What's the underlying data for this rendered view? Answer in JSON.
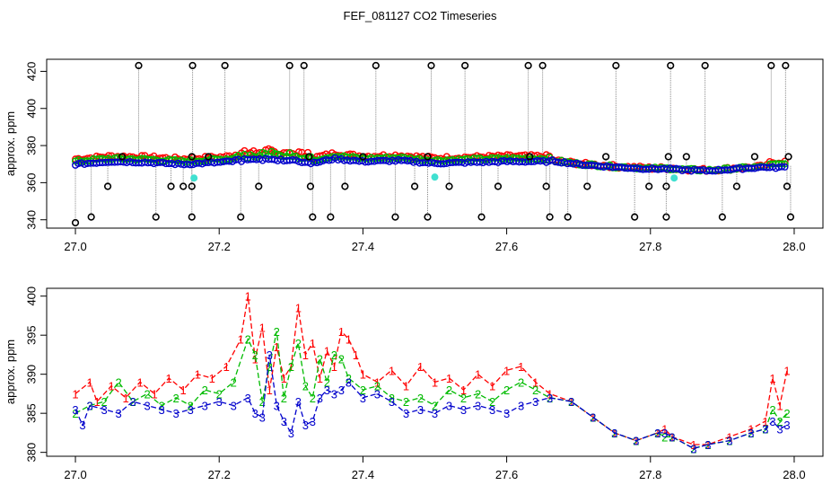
{
  "title": "FEF_081127  CO2 Timeseries",
  "colors": {
    "series1": "#ff0000",
    "series2": "#00bb00",
    "series3": "#0000cc",
    "outlier": "#000000",
    "flag": "#40e0d0",
    "connector": "#888888"
  },
  "chart_data": [
    {
      "type": "scatter",
      "ylabel": "approx. ppm",
      "xlim": [
        26.96,
        28.04
      ],
      "ylim": [
        335.5,
        426.5
      ],
      "x_ticks": [
        27.0,
        27.2,
        27.4,
        27.6,
        27.8,
        28.0
      ],
      "x_tick_labels": [
        "27.0",
        "27.2",
        "27.4",
        "27.6",
        "27.8",
        "28.0"
      ],
      "y_ticks": [
        340,
        360,
        380,
        400,
        420
      ],
      "y_tick_labels": [
        "340",
        "360",
        "380",
        "400",
        "420"
      ],
      "marker": "open circle",
      "baseline": [
        [
          27.0,
          370.5
        ],
        [
          27.05,
          372.0
        ],
        [
          27.1,
          371.5
        ],
        [
          27.15,
          370.5
        ],
        [
          27.2,
          371.5
        ],
        [
          27.25,
          373.0
        ],
        [
          27.3,
          372.5
        ],
        [
          27.33,
          371.0
        ],
        [
          27.36,
          373.5
        ],
        [
          27.4,
          372.0
        ],
        [
          27.45,
          372.5
        ],
        [
          27.5,
          371.0
        ],
        [
          27.55,
          371.5
        ],
        [
          27.6,
          372.0
        ],
        [
          27.65,
          372.0
        ],
        [
          27.66,
          372.0
        ],
        [
          27.7,
          370.0
        ],
        [
          27.75,
          368.5
        ],
        [
          27.8,
          367.5
        ],
        [
          27.83,
          367.5
        ],
        [
          27.84,
          367.0
        ],
        [
          27.88,
          366.5
        ],
        [
          27.92,
          367.5
        ],
        [
          27.96,
          368.5
        ],
        [
          27.99,
          369.0
        ]
      ],
      "outliers": [
        [
          27.0,
          338.0
        ],
        [
          27.022,
          341.5
        ],
        [
          27.045,
          358.0
        ],
        [
          27.065,
          374.0
        ],
        [
          27.088,
          430.0
        ],
        [
          27.112,
          341.5
        ],
        [
          27.133,
          358.0
        ],
        [
          27.15,
          358.0
        ],
        [
          27.162,
          341.5
        ],
        [
          27.162,
          358.0
        ],
        [
          27.162,
          374.0
        ],
        [
          27.163,
          430.0
        ],
        [
          27.185,
          374.0
        ],
        [
          27.208,
          430.0
        ],
        [
          27.23,
          341.5
        ],
        [
          27.255,
          358.0
        ],
        [
          27.298,
          430.0
        ],
        [
          27.318,
          430.0
        ],
        [
          27.325,
          374.0
        ],
        [
          27.327,
          358.0
        ],
        [
          27.33,
          341.5
        ],
        [
          27.355,
          341.5
        ],
        [
          27.375,
          358.0
        ],
        [
          27.4,
          374.0
        ],
        [
          27.418,
          430.0
        ],
        [
          27.445,
          341.5
        ],
        [
          27.472,
          358.0
        ],
        [
          27.49,
          341.5
        ],
        [
          27.49,
          374.0
        ],
        [
          27.495,
          430.0
        ],
        [
          27.52,
          358.0
        ],
        [
          27.542,
          430.0
        ],
        [
          27.565,
          341.5
        ],
        [
          27.588,
          358.0
        ],
        [
          27.63,
          430.0
        ],
        [
          27.632,
          374.0
        ],
        [
          27.65,
          430.0
        ],
        [
          27.655,
          358.0
        ],
        [
          27.66,
          341.5
        ],
        [
          27.685,
          341.5
        ],
        [
          27.712,
          358.0
        ],
        [
          27.738,
          374.0
        ],
        [
          27.752,
          430.0
        ],
        [
          27.778,
          341.5
        ],
        [
          27.798,
          358.0
        ],
        [
          27.822,
          358.0
        ],
        [
          27.822,
          341.5
        ],
        [
          27.825,
          374.0
        ],
        [
          27.828,
          430.0
        ],
        [
          27.85,
          374.0
        ],
        [
          27.876,
          430.0
        ],
        [
          27.9,
          341.5
        ],
        [
          27.92,
          358.0
        ],
        [
          27.945,
          374.0
        ],
        [
          27.968,
          430.0
        ],
        [
          27.988,
          430.0
        ],
        [
          27.99,
          358.0
        ],
        [
          27.992,
          374.0
        ],
        [
          27.995,
          341.5
        ]
      ],
      "flags": [
        [
          27.165,
          362.5
        ],
        [
          27.5,
          363.0
        ],
        [
          27.833,
          362.5
        ]
      ]
    },
    {
      "type": "line",
      "ylabel": "approx. ppm",
      "xlim": [
        26.96,
        28.04
      ],
      "ylim": [
        379.5,
        401.0
      ],
      "x_ticks": [
        27.0,
        27.2,
        27.4,
        27.6,
        27.8,
        28.0
      ],
      "x_tick_labels": [
        "27.0",
        "27.2",
        "27.4",
        "27.6",
        "27.8",
        "28.0"
      ],
      "y_ticks": [
        380,
        385,
        390,
        395,
        400
      ],
      "y_tick_labels": [
        "380",
        "385",
        "390",
        "395",
        "400"
      ],
      "marker": "series number",
      "series": [
        {
          "name": "1",
          "values": [
            [
              27.0,
              387.5
            ],
            [
              27.02,
              389.0
            ],
            [
              27.03,
              386.5
            ],
            [
              27.05,
              388.5
            ],
            [
              27.07,
              387.0
            ],
            [
              27.09,
              389.0
            ],
            [
              27.11,
              387.5
            ],
            [
              27.13,
              389.5
            ],
            [
              27.15,
              388.0
            ],
            [
              27.17,
              390.0
            ],
            [
              27.19,
              389.5
            ],
            [
              27.21,
              391.0
            ],
            [
              27.23,
              394.5
            ],
            [
              27.24,
              400.0
            ],
            [
              27.25,
              392.0
            ],
            [
              27.26,
              396.0
            ],
            [
              27.27,
              388.0
            ],
            [
              27.28,
              393.5
            ],
            [
              27.29,
              389.5
            ],
            [
              27.3,
              391.0
            ],
            [
              27.31,
              398.5
            ],
            [
              27.32,
              392.5
            ],
            [
              27.33,
              394.0
            ],
            [
              27.34,
              389.5
            ],
            [
              27.35,
              393.0
            ],
            [
              27.36,
              391.0
            ],
            [
              27.37,
              395.5
            ],
            [
              27.38,
              394.5
            ],
            [
              27.39,
              392.5
            ],
            [
              27.4,
              390.0
            ],
            [
              27.42,
              389.0
            ],
            [
              27.44,
              390.5
            ],
            [
              27.46,
              388.5
            ],
            [
              27.48,
              391.0
            ],
            [
              27.5,
              389.0
            ],
            [
              27.52,
              389.5
            ],
            [
              27.54,
              388.0
            ],
            [
              27.56,
              390.0
            ],
            [
              27.58,
              388.5
            ],
            [
              27.6,
              390.5
            ],
            [
              27.62,
              391.0
            ],
            [
              27.64,
              389.0
            ],
            [
              27.66,
              387.5
            ],
            [
              27.69,
              386.5
            ],
            [
              27.72,
              384.5
            ],
            [
              27.75,
              382.5
            ],
            [
              27.78,
              381.5
            ],
            [
              27.81,
              382.5
            ],
            [
              27.82,
              383.0
            ],
            [
              27.83,
              382.0
            ],
            [
              27.86,
              381.0
            ],
            [
              27.88,
              381.0
            ],
            [
              27.91,
              382.0
            ],
            [
              27.94,
              383.0
            ],
            [
              27.96,
              384.0
            ],
            [
              27.97,
              389.5
            ],
            [
              27.98,
              386.0
            ],
            [
              27.99,
              390.5
            ]
          ]
        },
        {
          "name": "2",
          "values": [
            [
              27.0,
              385.0
            ],
            [
              27.02,
              386.0
            ],
            [
              27.04,
              386.5
            ],
            [
              27.06,
              389.0
            ],
            [
              27.08,
              386.5
            ],
            [
              27.1,
              387.5
            ],
            [
              27.12,
              386.0
            ],
            [
              27.14,
              387.0
            ],
            [
              27.16,
              386.0
            ],
            [
              27.18,
              388.0
            ],
            [
              27.2,
              387.5
            ],
            [
              27.22,
              389.0
            ],
            [
              27.24,
              394.5
            ],
            [
              27.25,
              392.5
            ],
            [
              27.26,
              386.5
            ],
            [
              27.27,
              391.0
            ],
            [
              27.28,
              395.5
            ],
            [
              27.29,
              387.0
            ],
            [
              27.3,
              391.0
            ],
            [
              27.31,
              394.0
            ],
            [
              27.32,
              388.5
            ],
            [
              27.33,
              387.0
            ],
            [
              27.34,
              392.0
            ],
            [
              27.35,
              389.0
            ],
            [
              27.36,
              392.5
            ],
            [
              27.37,
              392.0
            ],
            [
              27.38,
              389.5
            ],
            [
              27.4,
              388.0
            ],
            [
              27.42,
              388.5
            ],
            [
              27.44,
              387.0
            ],
            [
              27.46,
              386.5
            ],
            [
              27.48,
              387.0
            ],
            [
              27.5,
              386.0
            ],
            [
              27.52,
              388.0
            ],
            [
              27.54,
              387.0
            ],
            [
              27.56,
              387.5
            ],
            [
              27.58,
              386.5
            ],
            [
              27.6,
              388.0
            ],
            [
              27.62,
              389.0
            ],
            [
              27.64,
              388.0
            ],
            [
              27.66,
              387.0
            ],
            [
              27.69,
              386.5
            ],
            [
              27.72,
              384.5
            ],
            [
              27.75,
              382.5
            ],
            [
              27.78,
              381.5
            ],
            [
              27.81,
              382.5
            ],
            [
              27.82,
              382.0
            ],
            [
              27.83,
              382.0
            ],
            [
              27.86,
              380.5
            ],
            [
              27.88,
              381.0
            ],
            [
              27.91,
              381.5
            ],
            [
              27.94,
              382.5
            ],
            [
              27.96,
              383.0
            ],
            [
              27.97,
              385.5
            ],
            [
              27.98,
              384.0
            ],
            [
              27.99,
              385.0
            ]
          ]
        },
        {
          "name": "3",
          "values": [
            [
              27.0,
              385.5
            ],
            [
              27.01,
              383.5
            ],
            [
              27.02,
              386.0
            ],
            [
              27.04,
              385.5
            ],
            [
              27.06,
              385.0
            ],
            [
              27.08,
              386.5
            ],
            [
              27.1,
              386.0
            ],
            [
              27.12,
              385.5
            ],
            [
              27.14,
              385.0
            ],
            [
              27.16,
              385.5
            ],
            [
              27.18,
              386.0
            ],
            [
              27.2,
              386.5
            ],
            [
              27.22,
              386.0
            ],
            [
              27.24,
              387.0
            ],
            [
              27.25,
              385.0
            ],
            [
              27.26,
              384.5
            ],
            [
              27.27,
              392.5
            ],
            [
              27.28,
              386.0
            ],
            [
              27.29,
              384.0
            ],
            [
              27.3,
              382.5
            ],
            [
              27.31,
              386.5
            ],
            [
              27.32,
              383.5
            ],
            [
              27.33,
              384.0
            ],
            [
              27.34,
              387.0
            ],
            [
              27.35,
              388.0
            ],
            [
              27.36,
              387.5
            ],
            [
              27.37,
              388.0
            ],
            [
              27.38,
              389.0
            ],
            [
              27.4,
              387.0
            ],
            [
              27.42,
              387.5
            ],
            [
              27.44,
              386.5
            ],
            [
              27.46,
              385.0
            ],
            [
              27.48,
              385.5
            ],
            [
              27.5,
              385.0
            ],
            [
              27.52,
              386.0
            ],
            [
              27.54,
              385.5
            ],
            [
              27.56,
              386.0
            ],
            [
              27.58,
              385.5
            ],
            [
              27.6,
              385.0
            ],
            [
              27.62,
              386.0
            ],
            [
              27.64,
              386.5
            ],
            [
              27.66,
              387.0
            ],
            [
              27.69,
              386.5
            ],
            [
              27.72,
              384.5
            ],
            [
              27.75,
              382.5
            ],
            [
              27.78,
              381.5
            ],
            [
              27.81,
              382.5
            ],
            [
              27.82,
              382.5
            ],
            [
              27.83,
              382.0
            ],
            [
              27.86,
              380.5
            ],
            [
              27.88,
              381.0
            ],
            [
              27.91,
              381.5
            ],
            [
              27.94,
              382.5
            ],
            [
              27.96,
              383.0
            ],
            [
              27.97,
              384.0
            ],
            [
              27.98,
              383.0
            ],
            [
              27.99,
              383.5
            ]
          ]
        }
      ]
    }
  ]
}
